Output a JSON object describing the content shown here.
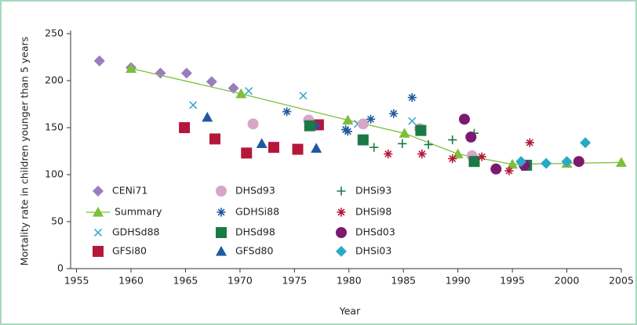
{
  "chart_data": {
    "type": "scatter",
    "x_label": "Year",
    "y_label": "Mortality rate in children younger than 5 years",
    "xlim": [
      1955,
      2005
    ],
    "ylim": [
      0,
      250
    ],
    "xticks": [
      1955,
      1960,
      1965,
      1970,
      1975,
      1980,
      1985,
      1990,
      1995,
      2000,
      2005
    ],
    "yticks": [
      0,
      50,
      100,
      150,
      200,
      250
    ],
    "legend": "lower left",
    "series": [
      {
        "name": "CENi71",
        "color": "#9b7cc0",
        "marker": "diamond",
        "x": [
          1957.1,
          1960,
          1962.7,
          1965.1,
          1967.4,
          1969.4
        ],
        "values": [
          221,
          214,
          208,
          208,
          199,
          192
        ]
      },
      {
        "name": "Summary",
        "color": "#7cbf3a",
        "marker": "triangle",
        "line": true,
        "x": [
          1960,
          1970.1,
          1979.9,
          1985.1,
          1990,
          1995,
          2000,
          2005
        ],
        "values": [
          213,
          186,
          158,
          144,
          122,
          111,
          112,
          113
        ]
      },
      {
        "name": "GDHSd88",
        "color": "#3aa8d0",
        "marker": "x",
        "x": [
          1965.7,
          1970.8,
          1975.8,
          1980.8,
          1985.8
        ],
        "values": [
          174,
          189,
          184,
          154,
          157
        ]
      },
      {
        "name": "GFSi80",
        "color": "#b5173b",
        "marker": "square",
        "x": [
          1964.9,
          1967.7,
          1970.6,
          1973.1,
          1975.3,
          1977.2
        ],
        "values": [
          150,
          138,
          123,
          129,
          127,
          153
        ]
      },
      {
        "name": "DHSd93",
        "color": "#d6a6c6",
        "marker": "circle",
        "x": [
          1971.2,
          1976.3,
          1981.3,
          1986.5,
          1991.3
        ],
        "values": [
          154,
          158,
          154,
          149,
          120
        ]
      },
      {
        "name": "GDHSi88",
        "color": "#1f5aa0",
        "marker": "asterisk",
        "x": [
          1974.3,
          1977,
          1979.7,
          1979.9,
          1982,
          1984.1,
          1985.8
        ],
        "values": [
          167,
          152,
          148,
          146,
          159,
          165,
          182
        ]
      },
      {
        "name": "DHSd98",
        "color": "#1a7a45",
        "marker": "square",
        "x": [
          1976.4,
          1981.3,
          1986.6,
          1991.5,
          1996.3
        ],
        "values": [
          152,
          137,
          147,
          114,
          110
        ]
      },
      {
        "name": "GFSd80",
        "color": "#1f5aa0",
        "marker": "triangle",
        "x": [
          1967,
          1972,
          1977
        ],
        "values": [
          161,
          133,
          128
        ]
      },
      {
        "name": "DHSi93",
        "color": "#1a7a45",
        "marker": "plus",
        "x": [
          1982.3,
          1984.9,
          1987.3,
          1989.5,
          1991.5
        ],
        "values": [
          129,
          133,
          132,
          137,
          144
        ]
      },
      {
        "name": "DHSi98",
        "color": "#b5173b",
        "marker": "asterisk",
        "x": [
          1983.6,
          1986.7,
          1989.5,
          1992.2,
          1994.7,
          1996.6
        ],
        "values": [
          122,
          122,
          117,
          119,
          104,
          134
        ]
      },
      {
        "name": "DHSd03",
        "color": "#7b1a6e",
        "marker": "circle",
        "x": [
          1990.6,
          1991.2,
          1993.5,
          1996.1,
          2001.1
        ],
        "values": [
          159,
          140,
          106,
          110,
          114
        ]
      },
      {
        "name": "DHSi03",
        "color": "#2aa8c8",
        "marker": "diamond",
        "x": [
          1995.8,
          1998.1,
          2000,
          2001.7
        ],
        "values": [
          114,
          112,
          114,
          134
        ]
      }
    ]
  }
}
